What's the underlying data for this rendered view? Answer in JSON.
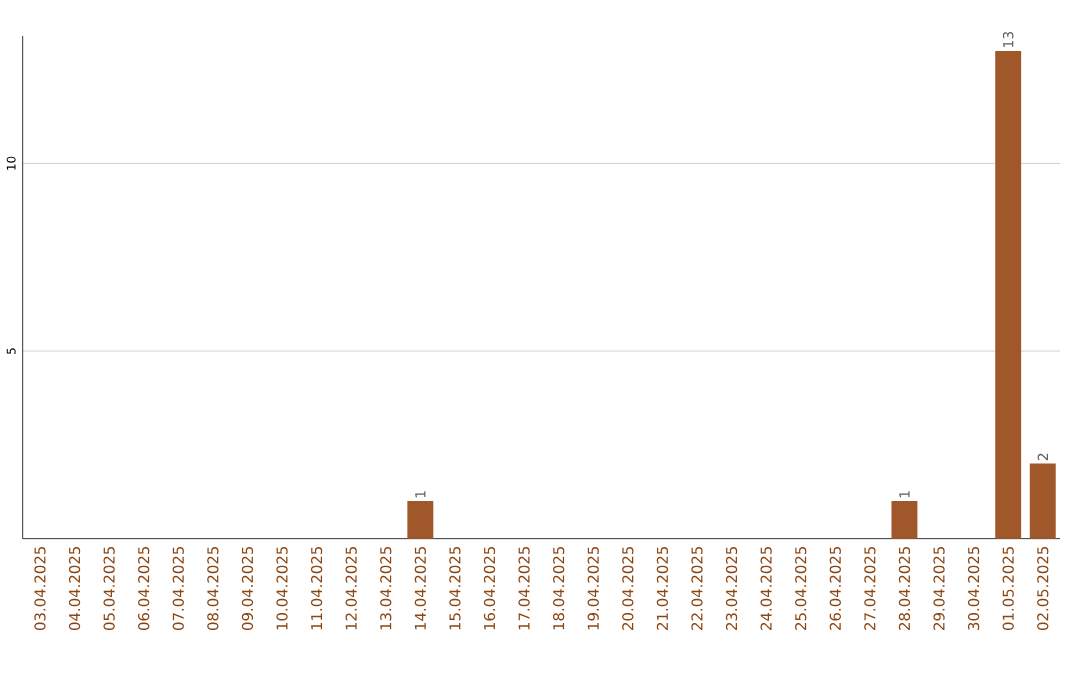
{
  "chart_data": {
    "type": "bar",
    "categories": [
      "03.04.2025",
      "04.04.2025",
      "05.04.2025",
      "06.04.2025",
      "07.04.2025",
      "08.04.2025",
      "09.04.2025",
      "10.04.2025",
      "11.04.2025",
      "12.04.2025",
      "13.04.2025",
      "14.04.2025",
      "15.04.2025",
      "16.04.2025",
      "17.04.2025",
      "18.04.2025",
      "19.04.2025",
      "20.04.2025",
      "21.04.2025",
      "22.04.2025",
      "23.04.2025",
      "24.04.2025",
      "25.04.2025",
      "26.04.2025",
      "27.04.2025",
      "28.04.2025",
      "29.04.2025",
      "30.04.2025",
      "01.05.2025",
      "02.05.2025"
    ],
    "values": [
      0,
      0,
      0,
      0,
      0,
      0,
      0,
      0,
      0,
      0,
      0,
      1,
      0,
      0,
      0,
      0,
      0,
      0,
      0,
      0,
      0,
      0,
      0,
      0,
      0,
      1,
      0,
      0,
      13,
      2
    ],
    "value_labels": [
      null,
      null,
      null,
      null,
      null,
      null,
      null,
      null,
      null,
      null,
      null,
      "1",
      null,
      null,
      null,
      null,
      null,
      null,
      null,
      null,
      null,
      null,
      null,
      null,
      null,
      "1",
      null,
      null,
      "13",
      "2"
    ],
    "color": "#a0582a",
    "ylim": [
      0,
      13.4
    ],
    "yticks": [
      5,
      10
    ],
    "grid": "y"
  }
}
